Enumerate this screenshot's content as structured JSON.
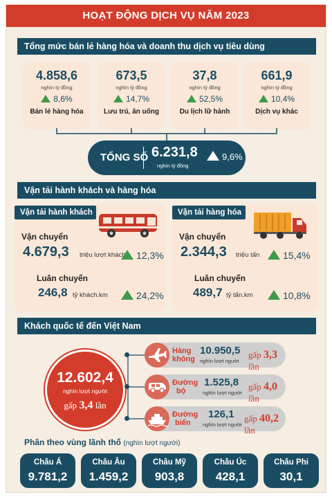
{
  "title": "HOẠT ĐỘNG DỊCH VỤ NĂM 2023",
  "retail": {
    "header": "Tổng mức bán lẻ hàng hóa và doanh thu dịch vụ tiêu dùng",
    "items": [
      {
        "value": "4.858,6",
        "unit": "nghìn tỷ đồng",
        "growth": "8,6%",
        "label": "Bán lẻ hàng hóa"
      },
      {
        "value": "673,5",
        "unit": "nghìn tỷ đồng",
        "growth": "14,7%",
        "label": "Lưu trú, ăn uống"
      },
      {
        "value": "37,8",
        "unit": "nghìn tỷ đồng",
        "growth": "52,5%",
        "label": "Du lịch lữ hành"
      },
      {
        "value": "661,9",
        "unit": "nghìn tỷ đồng",
        "growth": "10,4%",
        "label": "Dịch vụ khác"
      }
    ],
    "total": {
      "label": "TỔNG SỐ",
      "value": "6.231,8",
      "unit": "nghìn tỷ đồng",
      "growth": "9,6%"
    }
  },
  "transport": {
    "header": "Vận tải hành khách và hàng hóa",
    "passenger": {
      "tag": "Vận tải hành khách",
      "carry_label": "Vận chuyển",
      "carry_value": "4.679,3",
      "carry_unit": "triệu lượt khách",
      "carry_growth": "12,3%",
      "rotation_label": "Luân chuyển",
      "rotation_value": "246,8",
      "rotation_unit": "tỷ khách.km",
      "rotation_growth": "24,2%"
    },
    "cargo": {
      "tag": "Vận tải hàng hóa",
      "carry_label": "Vận chuyển",
      "carry_value": "2.344,3",
      "carry_unit": "triệu tấn",
      "carry_growth": "15,4%",
      "rotation_label": "Luân chuyển",
      "rotation_value": "489,7",
      "rotation_unit": "tỷ tấn.km",
      "rotation_growth": "10,8%"
    }
  },
  "visitors": {
    "header": "Khách quốc tế đến Việt Nam",
    "total_value": "12.602,4",
    "total_unit": "nghìn lượt người",
    "total_gap_prefix": "gấp",
    "total_gap_value": "3,4",
    "total_gap_suffix": "lần",
    "modes": [
      {
        "name_line1": "Hàng",
        "name_line2": "không",
        "value": "10.950,5",
        "unit": "nghìn lượt người",
        "gap_prefix": "gấp",
        "gap_value": "3,3",
        "gap_suffix": "lần",
        "icon": "airplane-icon"
      },
      {
        "name_line1": "Đường",
        "name_line2": "bộ",
        "value": "1.525,8",
        "unit": "nghìn lượt người",
        "gap_prefix": "gấp",
        "gap_value": "4,0",
        "gap_suffix": "lần",
        "icon": "car-icon"
      },
      {
        "name_line1": "Đường",
        "name_line2": "biển",
        "value": "126,1",
        "unit": "nghìn lượt người",
        "gap_prefix": "gấp",
        "gap_value": "40,2",
        "gap_suffix": "lần",
        "icon": "ship-icon"
      }
    ],
    "region_title": "Phân theo vùng lãnh thổ",
    "region_unit": "(nghìn lượt người)",
    "regions": [
      {
        "name": "Châu Á",
        "value": "9.781,2"
      },
      {
        "name": "Châu Âu",
        "value": "1.459,2"
      },
      {
        "name": "Châu Mỹ",
        "value": "903,8"
      },
      {
        "name": "Châu Úc",
        "value": "428,1"
      },
      {
        "name": "Châu Phi",
        "value": "30,1"
      }
    ]
  },
  "colors": {
    "red": "#d33c2a",
    "navy": "#1a4d63",
    "cream": "#fbe7d7",
    "green": "#3f9a4a",
    "background": "#f6ede3"
  }
}
